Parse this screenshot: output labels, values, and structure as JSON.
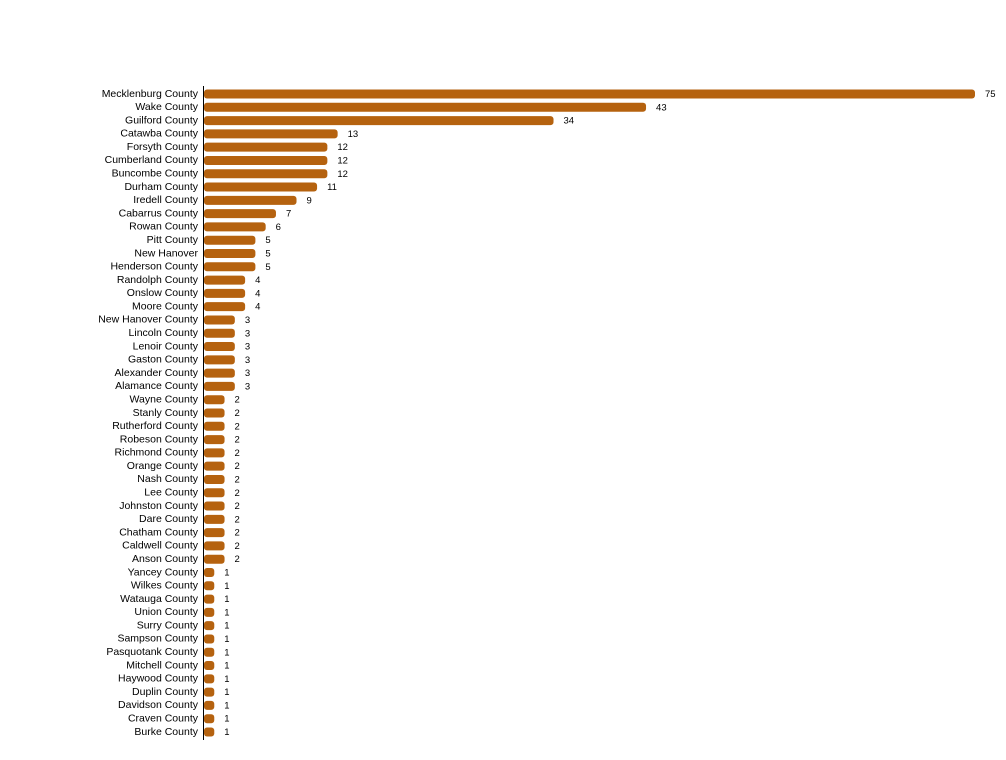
{
  "chart_data": {
    "type": "hbar",
    "color": "#b5620f",
    "categories": [
      "Mecklenburg County",
      "Wake County",
      "Guilford County",
      "Catawba County",
      "Forsyth County",
      "Cumberland County",
      "Buncombe County",
      "Durham County",
      "Iredell County",
      "Cabarrus County",
      "Rowan County",
      "Pitt County",
      "New Hanover",
      "Henderson County",
      "Randolph County",
      "Onslow County",
      "Moore County",
      "New Hanover County",
      "Lincoln County",
      "Lenoir County",
      "Gaston County",
      "Alexander County",
      "Alamance County",
      "Wayne County",
      "Stanly County",
      "Rutherford County",
      "Robeson County",
      "Richmond County",
      "Orange County",
      "Nash County",
      "Lee County",
      "Johnston County",
      "Dare County",
      "Chatham County",
      "Caldwell County",
      "Anson County",
      "Yancey County",
      "Wilkes County",
      "Watauga County",
      "Union County",
      "Surry County",
      "Sampson County",
      "Pasquotank County",
      "Mitchell County",
      "Haywood County",
      "Duplin County",
      "Davidson County",
      "Craven County",
      "Burke County"
    ],
    "values": [
      75,
      43,
      34,
      13,
      12,
      12,
      12,
      11,
      9,
      7,
      6,
      5,
      5,
      5,
      4,
      4,
      4,
      3,
      3,
      3,
      3,
      3,
      3,
      2,
      2,
      2,
      2,
      2,
      2,
      2,
      2,
      2,
      2,
      2,
      2,
      2,
      1,
      1,
      1,
      1,
      1,
      1,
      1,
      1,
      1,
      1,
      1,
      1,
      1
    ]
  }
}
